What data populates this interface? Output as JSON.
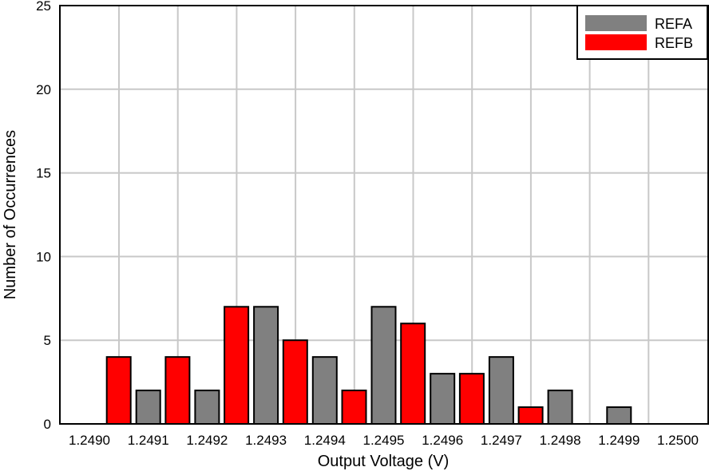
{
  "chart_data": {
    "type": "bar",
    "title": "",
    "xlabel": "Output Voltage (V)",
    "ylabel": "Number of Occurrences",
    "ylim": [
      0,
      25
    ],
    "yticks": [
      "0",
      "5",
      "10",
      "15",
      "20",
      "25"
    ],
    "grid": true,
    "legend_position": "top-right",
    "categories": [
      "1.2490",
      "1.2491",
      "1.2492",
      "1.2493",
      "1.2494",
      "1.2495",
      "1.2496",
      "1.2497",
      "1.2498",
      "1.2499",
      "1.2500"
    ],
    "series": [
      {
        "name": "REFA",
        "color": "#808080",
        "values": [
          0,
          2,
          2,
          7,
          4,
          7,
          3,
          4,
          2,
          1,
          0
        ]
      },
      {
        "name": "REFB",
        "color": "#ff0000",
        "values": [
          0,
          4,
          4,
          7,
          5,
          2,
          6,
          3,
          1,
          0,
          0
        ]
      }
    ]
  }
}
